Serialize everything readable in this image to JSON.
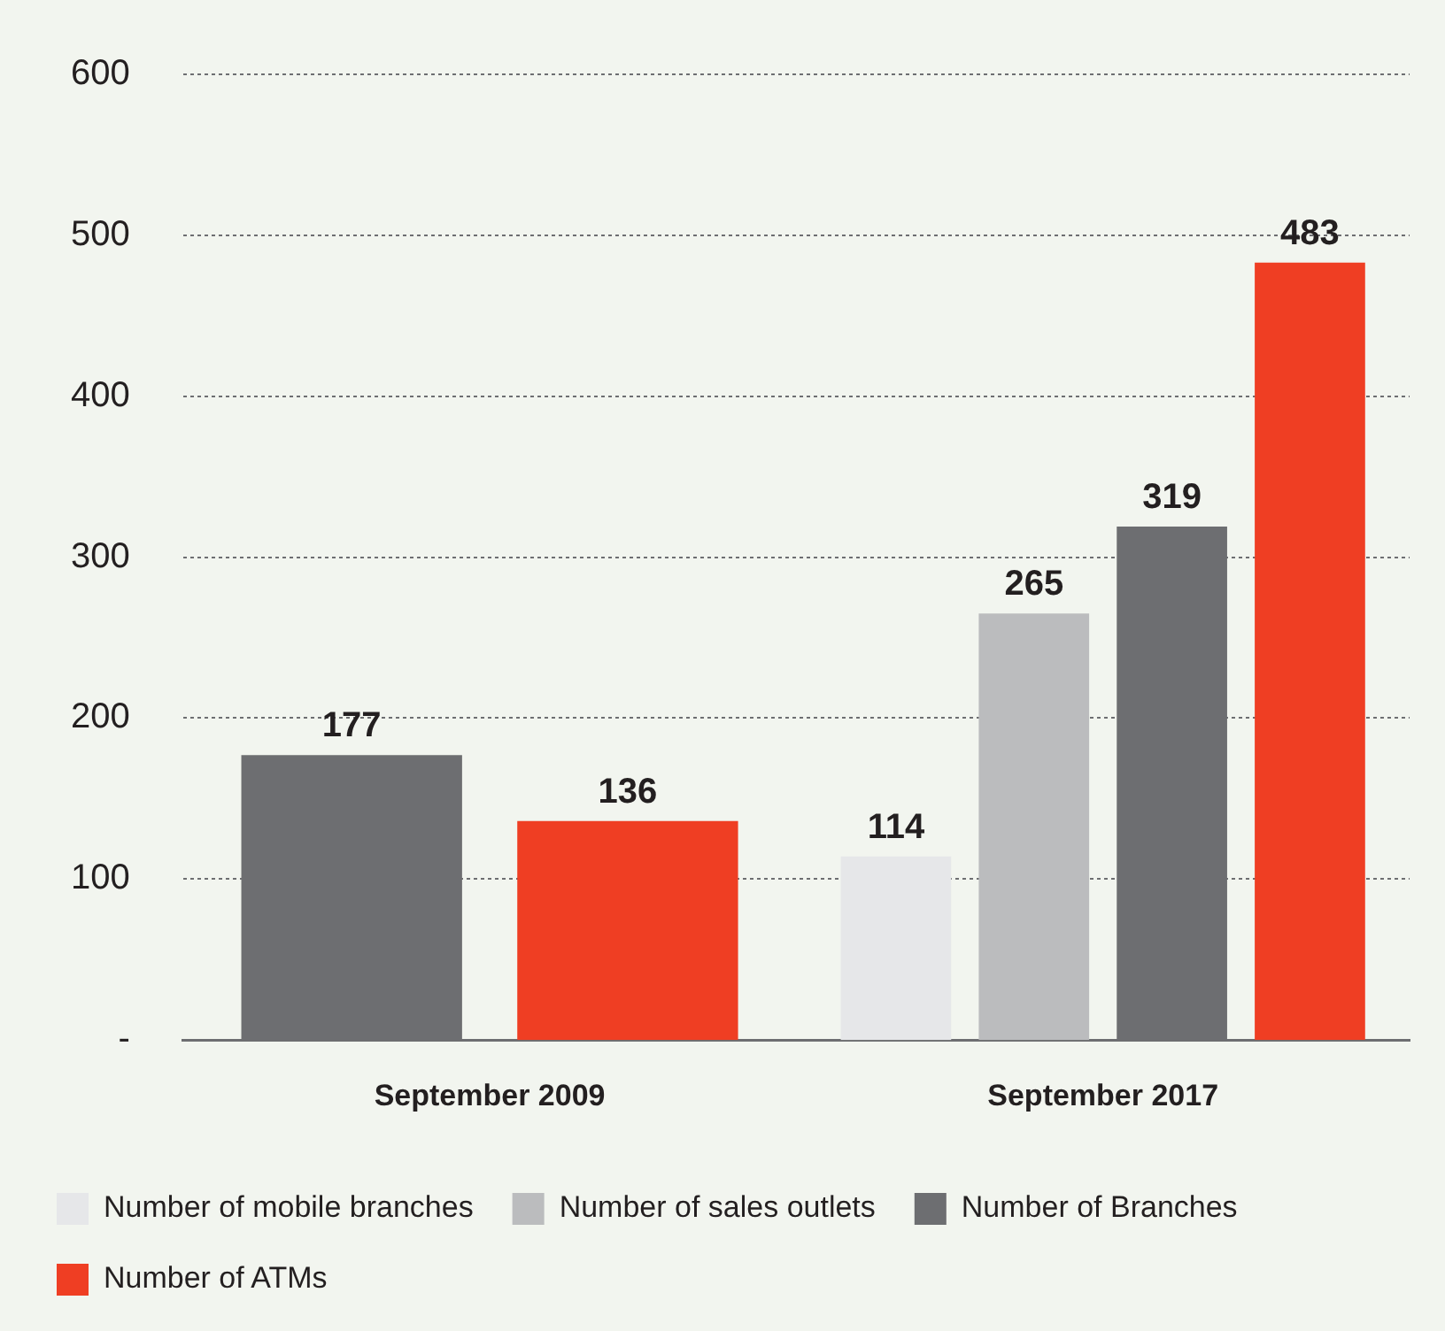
{
  "chart_data": {
    "type": "bar",
    "categories": [
      "September 2009",
      "September 2017"
    ],
    "series": [
      {
        "name": "Number of mobile branches",
        "color": "#e6e7e9",
        "values": [
          null,
          114
        ]
      },
      {
        "name": "Number of sales outlets",
        "color": "#bbbcbe",
        "values": [
          null,
          265
        ]
      },
      {
        "name": "Number of Branches",
        "color": "#6d6e71",
        "values": [
          177,
          319
        ]
      },
      {
        "name": "Number of ATMs",
        "color": "#ef3e23",
        "values": [
          136,
          483
        ]
      }
    ],
    "ylim": [
      0,
      600
    ],
    "yticks": [
      {
        "value": 0,
        "label": "-"
      },
      100,
      200,
      300,
      400,
      500,
      600
    ],
    "grid": "y",
    "legend": "bottom",
    "data_labels": true
  }
}
